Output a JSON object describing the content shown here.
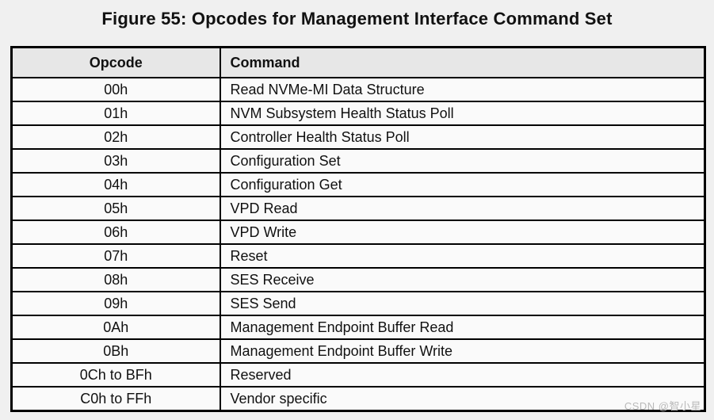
{
  "figure": {
    "title": "Figure 55: Opcodes for Management Interface Command Set"
  },
  "table": {
    "columns": {
      "opcode": "Opcode",
      "command": "Command"
    },
    "rows": [
      {
        "opcode": "00h",
        "command": "Read NVMe-MI Data Structure"
      },
      {
        "opcode": "01h",
        "command": "NVM Subsystem Health Status Poll"
      },
      {
        "opcode": "02h",
        "command": "Controller Health Status Poll"
      },
      {
        "opcode": "03h",
        "command": "Configuration Set"
      },
      {
        "opcode": "04h",
        "command": "Configuration Get"
      },
      {
        "opcode": "05h",
        "command": "VPD Read"
      },
      {
        "opcode": "06h",
        "command": "VPD Write"
      },
      {
        "opcode": "07h",
        "command": "Reset"
      },
      {
        "opcode": "08h",
        "command": "SES Receive"
      },
      {
        "opcode": "09h",
        "command": "SES Send"
      },
      {
        "opcode": "0Ah",
        "command": "Management Endpoint Buffer Read"
      },
      {
        "opcode": "0Bh",
        "command": "Management Endpoint Buffer Write"
      },
      {
        "opcode": "0Ch to BFh",
        "command": "Reserved"
      },
      {
        "opcode": "C0h to FFh",
        "command": "Vendor specific"
      }
    ]
  },
  "watermark": "CSDN @智小星",
  "colors": {
    "page_background": "#f0f0f0",
    "header_background": "#e7e7e7",
    "cell_background": "#fafafa",
    "border": "#000000",
    "watermark_text": "#b9b9b9"
  }
}
